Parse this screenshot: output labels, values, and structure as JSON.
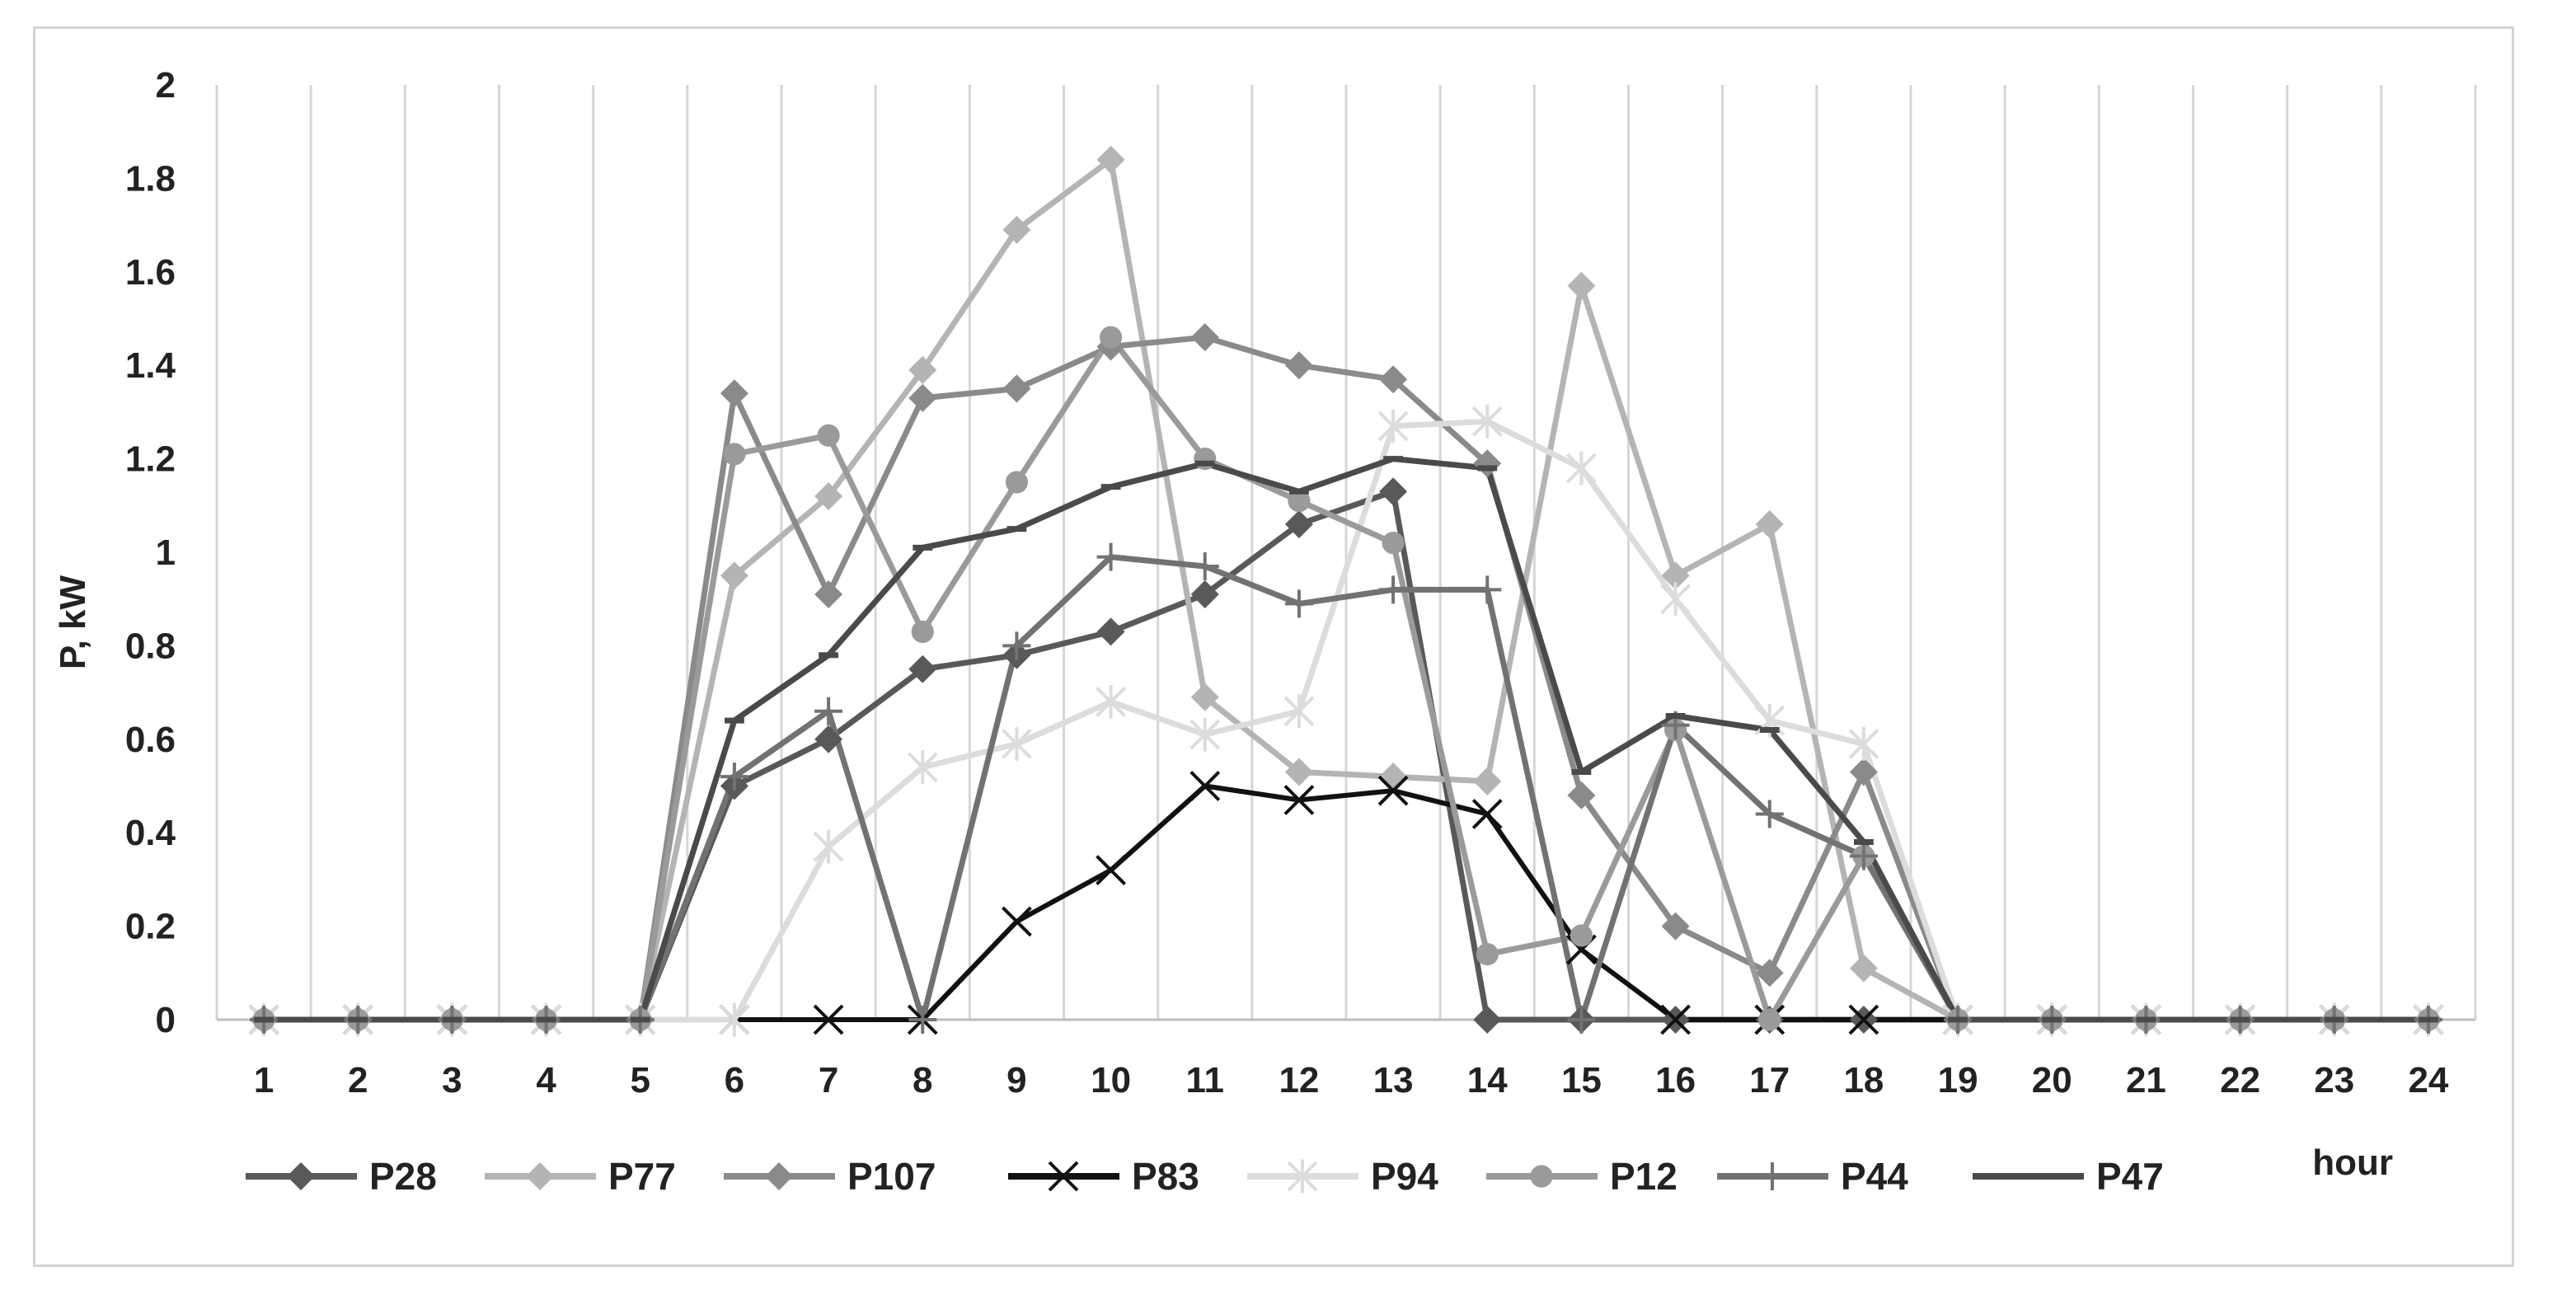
{
  "chart_data": {
    "type": "line",
    "title": "",
    "xlabel": "hour",
    "ylabel": "P, kW",
    "x": [
      1,
      2,
      3,
      4,
      5,
      6,
      7,
      8,
      9,
      10,
      11,
      12,
      13,
      14,
      15,
      16,
      17,
      18,
      19,
      20,
      21,
      22,
      23,
      24
    ],
    "xtick_labels": [
      "1",
      "2",
      "3",
      "4",
      "5",
      "6",
      "7",
      "8",
      "9",
      "10",
      "11",
      "12",
      "13",
      "14",
      "15",
      "16",
      "17",
      "18",
      "19",
      "20",
      "21",
      "22",
      "23",
      "24"
    ],
    "ylim": [
      0,
      2
    ],
    "ytick_labels": [
      "0",
      "0.2",
      "0.4",
      "0.6",
      "0.8",
      "1",
      "1.2",
      "1.4",
      "1.6",
      "1.8",
      "2"
    ],
    "yticks": [
      0,
      0.2,
      0.4,
      0.6,
      0.8,
      1,
      1.2,
      1.4,
      1.6,
      1.8,
      2
    ],
    "grid": "vertical",
    "legend_position": "bottom",
    "series": [
      {
        "name": "P28",
        "color": "#595959",
        "marker": "diamond",
        "values": [
          0,
          0,
          0,
          0,
          0,
          0.5,
          0.6,
          0.75,
          0.78,
          0.83,
          0.91,
          1.06,
          1.13,
          0,
          0,
          0,
          0,
          0,
          0,
          0,
          0,
          0,
          0,
          0
        ]
      },
      {
        "name": "P77",
        "color": "#b4b4b4",
        "marker": "diamond",
        "values": [
          0,
          0,
          0,
          0,
          0,
          0.95,
          1.12,
          1.39,
          1.69,
          1.84,
          0.69,
          0.53,
          0.52,
          0.51,
          1.57,
          0.95,
          1.06,
          0.11,
          0,
          0,
          0,
          0,
          0,
          0
        ]
      },
      {
        "name": "P107",
        "color": "#8a8a8a",
        "marker": "diamond",
        "values": [
          0,
          0,
          0,
          0,
          0,
          1.34,
          0.91,
          1.33,
          1.35,
          1.44,
          1.46,
          1.4,
          1.37,
          1.19,
          0.48,
          0.2,
          0.1,
          0.53,
          0,
          0,
          0,
          0,
          0,
          0
        ]
      },
      {
        "name": "P83",
        "color": "#111111",
        "marker": "x",
        "values": [
          0,
          0,
          0,
          0,
          0,
          0,
          0,
          0,
          0.21,
          0.32,
          0.5,
          0.47,
          0.49,
          0.44,
          0.15,
          0,
          0,
          0,
          0,
          0,
          0,
          0,
          0,
          0
        ]
      },
      {
        "name": "P94",
        "color": "#dcdcdc",
        "marker": "star",
        "values": [
          0,
          0,
          0,
          0,
          0,
          0,
          0.37,
          0.54,
          0.59,
          0.68,
          0.61,
          0.66,
          1.27,
          1.28,
          1.18,
          0.9,
          0.64,
          0.59,
          0,
          0,
          0,
          0,
          0,
          0
        ]
      },
      {
        "name": "P12",
        "color": "#9a9a9a",
        "marker": "circle",
        "values": [
          0,
          0,
          0,
          0,
          0,
          1.21,
          1.25,
          0.83,
          1.15,
          1.46,
          1.2,
          1.11,
          1.02,
          0.14,
          0.18,
          0.62,
          0,
          0.35,
          0,
          0,
          0,
          0,
          0,
          0
        ]
      },
      {
        "name": "P44",
        "color": "#727272",
        "marker": "plus",
        "values": [
          0,
          0,
          0,
          0,
          0,
          0.52,
          0.66,
          0,
          0.8,
          0.99,
          0.97,
          0.89,
          0.92,
          0.92,
          0,
          0.63,
          0.44,
          0.35,
          0,
          0,
          0,
          0,
          0,
          0
        ]
      },
      {
        "name": "P47",
        "color": "#4a4a4a",
        "marker": "dash",
        "values": [
          0,
          0,
          0,
          0,
          0,
          0.64,
          0.78,
          1.01,
          1.05,
          1.14,
          1.19,
          1.13,
          1.2,
          1.18,
          0.53,
          0.65,
          0.62,
          0.38,
          0,
          0,
          0,
          0,
          0,
          0
        ]
      }
    ]
  }
}
